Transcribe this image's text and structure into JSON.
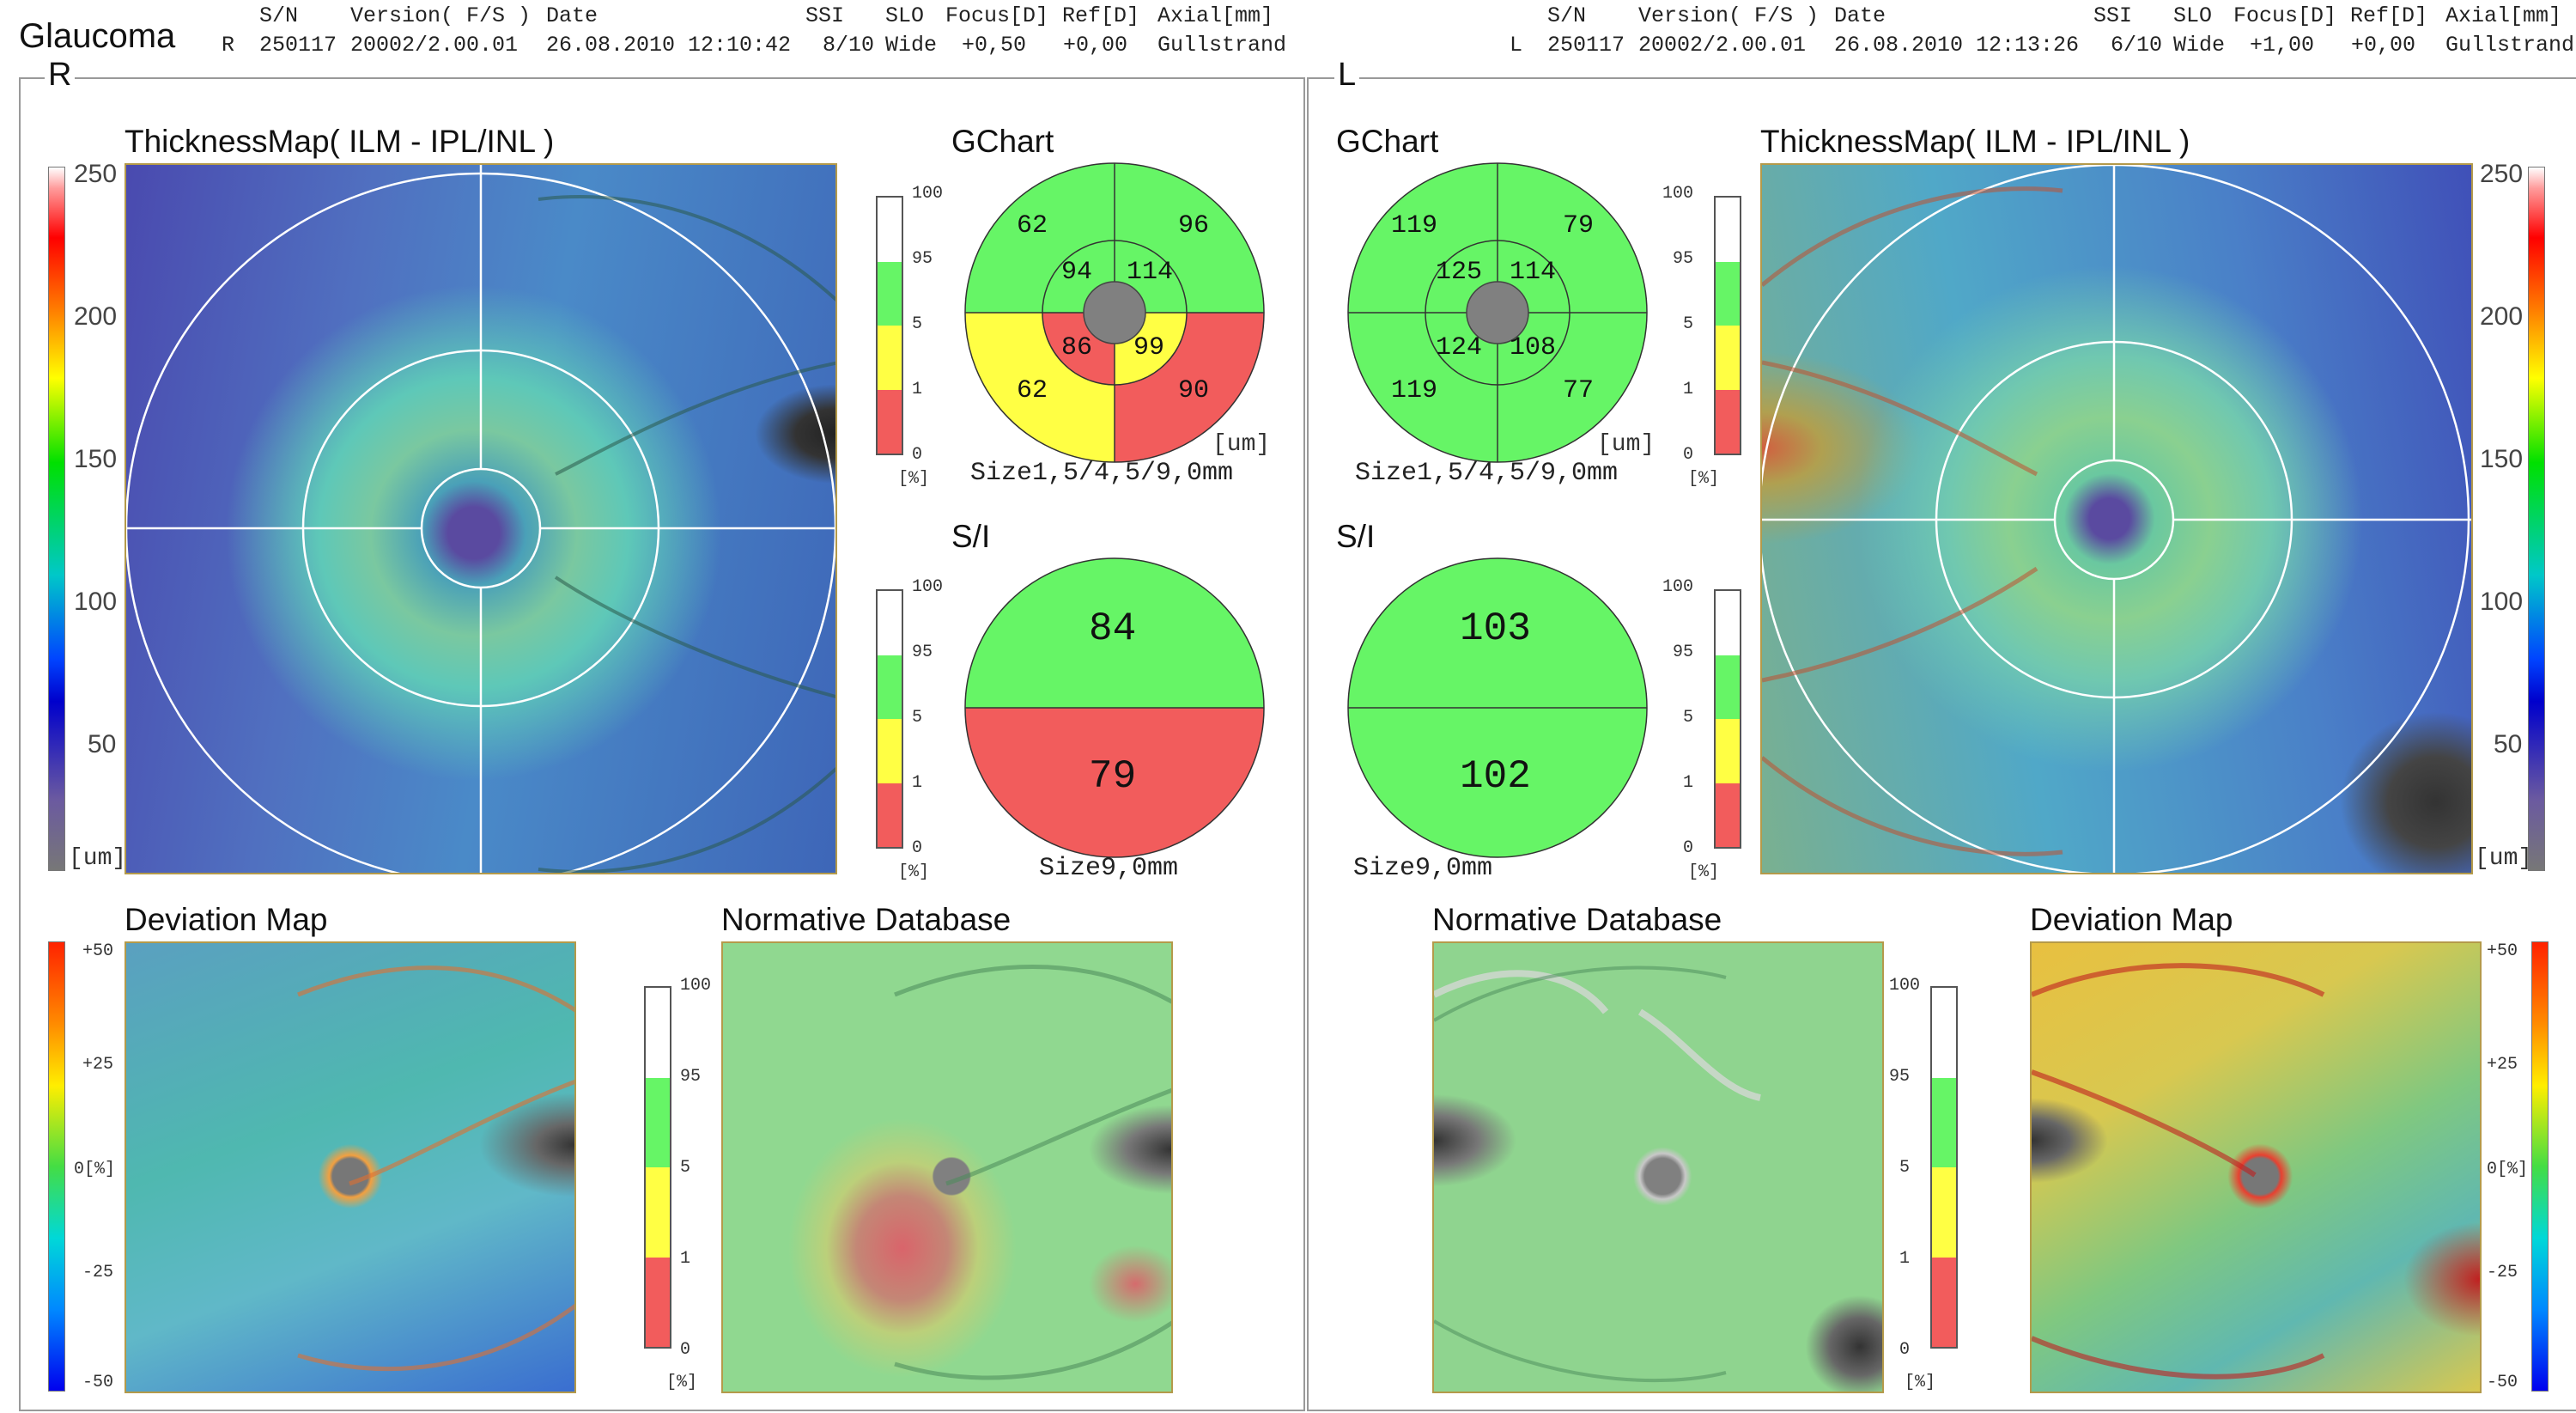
{
  "report": {
    "title": "Glaucoma"
  },
  "header": {
    "columns": [
      "S/N",
      "Version( F/S )",
      "Date",
      "SSI",
      "SLO",
      "Focus[D]",
      "Ref[D]",
      "Axial[mm]"
    ],
    "right_eye": {
      "eye": "R",
      "sn": "250117",
      "version": "20002/2.00.01",
      "date": "26.08.2010 12:10:42",
      "ssi": "8/10",
      "slo": "Wide",
      "focus": "+0,50",
      "ref": "+0,00",
      "axial": "Gullstrand"
    },
    "left_eye": {
      "eye": "L",
      "sn": "250117",
      "version": "20002/2.00.01",
      "date": "26.08.2010 12:13:26",
      "ssi": "6/10",
      "slo": "Wide",
      "focus": "+1,00",
      "ref": "+0,00",
      "axial": "Gullstrand"
    }
  },
  "labels": {
    "thickness_map": "ThicknessMap( ILM - IPL/INL )",
    "gchart": "GChart",
    "si": "S/I",
    "deviation_map": "Deviation Map",
    "normative_database": "Normative Database",
    "unit_um": "[um]",
    "unit_percent": "[%]",
    "gchart_size": "Size1,5/4,5/9,0mm",
    "si_size": "Size9,0mm"
  },
  "thickness_scale": [
    "250",
    "200",
    "150",
    "100",
    "50"
  ],
  "deviation_scale": [
    "+50",
    "+25",
    "0[%]",
    "-25",
    "-50"
  ],
  "percentile_scale": [
    "100",
    "95",
    "5",
    "1",
    "0"
  ],
  "colors": {
    "normal": "#66f566",
    "borderline": "#ffff44",
    "outside": "#f25c5c",
    "top": "#ffffff",
    "fovea": "#808080"
  },
  "right_eye": {
    "eye": "R",
    "gchart": {
      "outer_tl": "62",
      "outer_tr": "96",
      "outer_bl": "62",
      "outer_br": "90",
      "inner_tl": "94",
      "inner_tr": "114",
      "inner_bl": "86",
      "inner_br": "99"
    },
    "si": {
      "superior": "84",
      "inferior": "79"
    }
  },
  "left_eye": {
    "eye": "L",
    "gchart": {
      "outer_tl": "119",
      "outer_tr": "79",
      "outer_bl": "119",
      "outer_br": "77",
      "inner_tl": "125",
      "inner_tr": "114",
      "inner_bl": "124",
      "inner_br": "108"
    },
    "si": {
      "superior": "103",
      "inferior": "102"
    }
  }
}
